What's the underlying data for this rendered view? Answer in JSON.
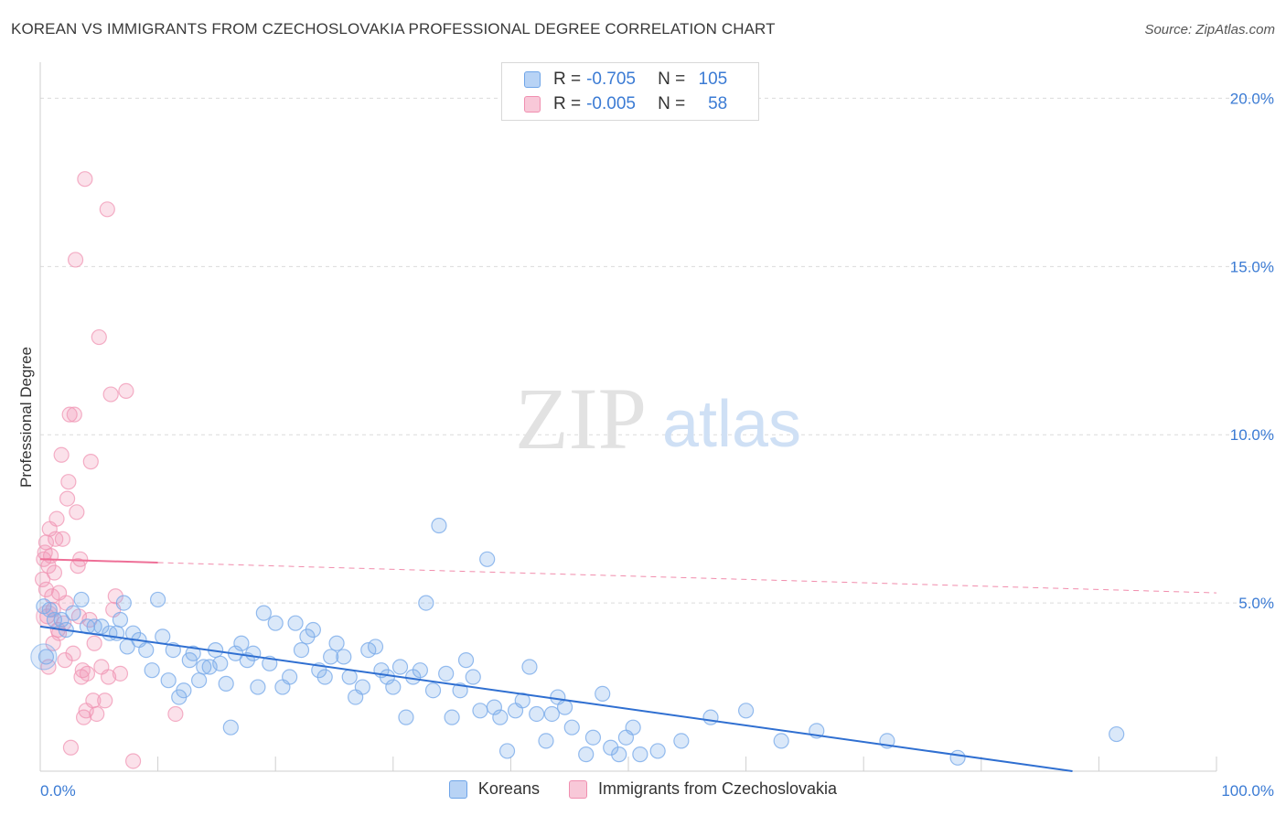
{
  "header": {
    "title": "KOREAN VS IMMIGRANTS FROM CZECHOSLOVAKIA PROFESSIONAL DEGREE CORRELATION CHART",
    "source": "Source: ZipAtlas.com"
  },
  "watermark": {
    "zip": "ZIP",
    "atlas": "atlas"
  },
  "legend": {
    "rows": [
      {
        "r_label": "R =",
        "r_value": "-0.705",
        "n_label": "N =",
        "n_value": "105",
        "color": "#6fa5e8",
        "fill": "#b8d3f5"
      },
      {
        "r_label": "R =",
        "r_value": "-0.005",
        "n_label": "N =",
        "n_value": "58",
        "color": "#f08fb0",
        "fill": "#f8c8d8"
      }
    ]
  },
  "bottom_legend": {
    "koreans": "Koreans",
    "czech": "Immigrants from Czechoslovakia"
  },
  "colors": {
    "blue_point": "#7aabea",
    "blue_line": "#2f6fd1",
    "pink_point": "#f095b4",
    "pink_line": "#ee6f97",
    "tick": "#3b7bd4"
  },
  "chart_data": {
    "type": "scatter",
    "title": "KOREAN VS IMMIGRANTS FROM CZECHOSLOVAKIA PROFESSIONAL DEGREE CORRELATION CHART",
    "xlabel": "",
    "ylabel": "Professional Degree",
    "xlim": [
      0,
      100
    ],
    "ylim": [
      0,
      20.8
    ],
    "x_ticks": [
      "0.0%",
      "100.0%"
    ],
    "y_ticks": [
      {
        "value": 5,
        "label": "5.0%"
      },
      {
        "value": 10,
        "label": "10.0%"
      },
      {
        "value": 15,
        "label": "15.0%"
      },
      {
        "value": 20,
        "label": "20.0%"
      }
    ],
    "grid": "horizontal dashed",
    "legend_position": "top-center",
    "series": [
      {
        "name": "Koreans",
        "trend": {
          "x": [
            0,
            100
          ],
          "y": [
            4.3,
            -0.6
          ],
          "solid_to": 100
        },
        "points": [
          [
            0.3,
            4.9
          ],
          [
            0.5,
            3.4
          ],
          [
            0.8,
            4.8
          ],
          [
            1.2,
            4.5
          ],
          [
            1.8,
            4.5
          ],
          [
            2.2,
            4.2
          ],
          [
            2.8,
            4.7
          ],
          [
            3.5,
            5.1
          ],
          [
            4,
            4.3
          ],
          [
            4.6,
            4.3
          ],
          [
            5.2,
            4.3
          ],
          [
            5.9,
            4.1
          ],
          [
            6.5,
            4.1
          ],
          [
            6.8,
            4.5
          ],
          [
            7.1,
            5
          ],
          [
            7.4,
            3.7
          ],
          [
            7.9,
            4.1
          ],
          [
            8.4,
            3.9
          ],
          [
            9,
            3.6
          ],
          [
            9.5,
            3
          ],
          [
            10,
            5.1
          ],
          [
            10.4,
            4
          ],
          [
            10.9,
            2.7
          ],
          [
            11.3,
            3.6
          ],
          [
            11.8,
            2.2
          ],
          [
            12.2,
            2.4
          ],
          [
            12.7,
            3.3
          ],
          [
            13,
            3.5
          ],
          [
            13.5,
            2.7
          ],
          [
            13.9,
            3.1
          ],
          [
            14.4,
            3.1
          ],
          [
            14.9,
            3.6
          ],
          [
            15.3,
            3.2
          ],
          [
            15.8,
            2.6
          ],
          [
            16.2,
            1.3
          ],
          [
            16.6,
            3.5
          ],
          [
            17.1,
            3.8
          ],
          [
            17.6,
            3.3
          ],
          [
            18.1,
            3.5
          ],
          [
            18.5,
            2.5
          ],
          [
            19,
            4.7
          ],
          [
            19.5,
            3.2
          ],
          [
            20,
            4.4
          ],
          [
            20.6,
            2.5
          ],
          [
            21.2,
            2.8
          ],
          [
            21.7,
            4.4
          ],
          [
            22.2,
            3.6
          ],
          [
            22.7,
            4
          ],
          [
            23.2,
            4.2
          ],
          [
            23.7,
            3
          ],
          [
            24.2,
            2.8
          ],
          [
            24.7,
            3.4
          ],
          [
            25.2,
            3.8
          ],
          [
            25.8,
            3.4
          ],
          [
            26.3,
            2.8
          ],
          [
            26.8,
            2.2
          ],
          [
            27.4,
            2.5
          ],
          [
            27.9,
            3.6
          ],
          [
            28.5,
            3.7
          ],
          [
            29,
            3
          ],
          [
            29.5,
            2.8
          ],
          [
            30,
            2.5
          ],
          [
            30.6,
            3.1
          ],
          [
            31.1,
            1.6
          ],
          [
            31.7,
            2.8
          ],
          [
            32.3,
            3
          ],
          [
            32.8,
            5
          ],
          [
            33.4,
            2.4
          ],
          [
            33.9,
            7.3
          ],
          [
            34.5,
            2.9
          ],
          [
            35,
            1.6
          ],
          [
            35.7,
            2.4
          ],
          [
            36.2,
            3.3
          ],
          [
            36.8,
            2.8
          ],
          [
            37.4,
            1.8
          ],
          [
            38,
            6.3
          ],
          [
            38.6,
            1.9
          ],
          [
            39.1,
            1.6
          ],
          [
            39.7,
            0.6
          ],
          [
            40.4,
            1.8
          ],
          [
            41,
            2.1
          ],
          [
            41.6,
            3.1
          ],
          [
            42.2,
            1.7
          ],
          [
            43,
            0.9
          ],
          [
            43.5,
            1.7
          ],
          [
            44,
            2.2
          ],
          [
            44.6,
            1.9
          ],
          [
            45.2,
            1.3
          ],
          [
            46.4,
            0.5
          ],
          [
            47,
            1
          ],
          [
            47.8,
            2.3
          ],
          [
            48.5,
            0.7
          ],
          [
            49.2,
            0.5
          ],
          [
            49.8,
            1
          ],
          [
            50.4,
            1.3
          ],
          [
            51,
            0.5
          ],
          [
            52.5,
            0.6
          ],
          [
            54.5,
            0.9
          ],
          [
            57,
            1.6
          ],
          [
            60,
            1.8
          ],
          [
            63,
            0.9
          ],
          [
            66,
            1.2
          ],
          [
            72,
            0.9
          ],
          [
            78,
            0.4
          ],
          [
            91.5,
            1.1
          ]
        ]
      },
      {
        "name": "Immigrants from Czechoslovakia",
        "trend": {
          "x": [
            0,
            100
          ],
          "y": [
            6.3,
            5.3
          ],
          "solid_to": 10
        },
        "points": [
          [
            0.2,
            5.7
          ],
          [
            0.3,
            6.3
          ],
          [
            0.4,
            6.5
          ],
          [
            0.5,
            6.8
          ],
          [
            0.5,
            5.4
          ],
          [
            0.6,
            4.6
          ],
          [
            0.7,
            3.1
          ],
          [
            0.7,
            6.1
          ],
          [
            0.8,
            7.2
          ],
          [
            0.9,
            6.4
          ],
          [
            1,
            5.2
          ],
          [
            1.1,
            4.8
          ],
          [
            1.1,
            3.8
          ],
          [
            1.2,
            5.9
          ],
          [
            1.3,
            6.9
          ],
          [
            1.4,
            7.5
          ],
          [
            1.5,
            4.2
          ],
          [
            1.6,
            5.3
          ],
          [
            1.6,
            4.1
          ],
          [
            1.8,
            9.4
          ],
          [
            1.9,
            6.9
          ],
          [
            2,
            4.4
          ],
          [
            2.1,
            3.3
          ],
          [
            2.2,
            5
          ],
          [
            2.3,
            8.1
          ],
          [
            2.4,
            8.6
          ],
          [
            2.5,
            10.6
          ],
          [
            2.6,
            0.7
          ],
          [
            2.8,
            3.5
          ],
          [
            2.9,
            10.6
          ],
          [
            3,
            15.2
          ],
          [
            3.1,
            7.7
          ],
          [
            3.2,
            6.1
          ],
          [
            3.3,
            4.6
          ],
          [
            3.4,
            6.3
          ],
          [
            3.5,
            2.8
          ],
          [
            3.6,
            3
          ],
          [
            3.7,
            1.6
          ],
          [
            3.8,
            17.6
          ],
          [
            3.9,
            1.8
          ],
          [
            4,
            2.9
          ],
          [
            4.2,
            4.5
          ],
          [
            4.3,
            9.2
          ],
          [
            4.5,
            2.1
          ],
          [
            4.6,
            3.8
          ],
          [
            4.8,
            1.7
          ],
          [
            5,
            12.9
          ],
          [
            5.2,
            3.1
          ],
          [
            5.5,
            2.1
          ],
          [
            5.7,
            16.7
          ],
          [
            5.8,
            2.8
          ],
          [
            6,
            11.2
          ],
          [
            6.2,
            4.8
          ],
          [
            6.4,
            5.2
          ],
          [
            6.8,
            2.9
          ],
          [
            7.3,
            11.3
          ],
          [
            7.9,
            0.3
          ],
          [
            11.5,
            1.7
          ]
        ]
      }
    ]
  }
}
